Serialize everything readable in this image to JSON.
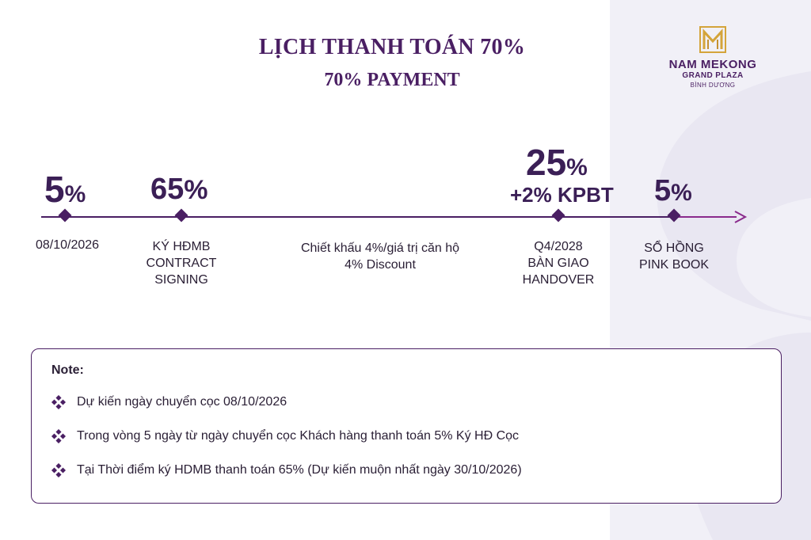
{
  "header": {
    "title": "LỊCH THANH TOÁN 70%",
    "subtitle": "70% PAYMENT"
  },
  "brand": {
    "name": "NAM MEKONG",
    "line2": "GRAND PLAZA",
    "line3": "BÌNH DƯƠNG",
    "logo_icon": "m-monogram-icon",
    "color": "#d4a43a"
  },
  "timeline": {
    "line_color": "#4a1f63",
    "arrow_color": "#8a2a8c",
    "milestones": [
      {
        "percent_num": "5",
        "percent_sym": "%",
        "extra": "",
        "label_lines": [
          "08/10/2026"
        ]
      },
      {
        "percent_num": "65",
        "percent_sym": "%",
        "extra": "",
        "label_lines": [
          "KÝ HĐMB",
          "CONTRACT",
          "SIGNING"
        ]
      },
      {
        "percent_num": "25",
        "percent_sym": "%",
        "extra": "+2% KPBT",
        "label_lines": [
          "Q4/2028",
          "BÀN GIAO",
          "HANDOVER"
        ]
      },
      {
        "percent_num": "5",
        "percent_sym": "%",
        "extra": "",
        "label_lines": [
          "SỔ HỒNG",
          "PINK BOOK"
        ]
      }
    ],
    "discount_lines": [
      "Chiết khấu 4%/giá trị căn hộ",
      "4% Discount"
    ]
  },
  "note": {
    "heading": "Note:",
    "bullet_icon": "four-diamond-bullet-icon",
    "items": [
      "Dự kiến ngày chuyển cọc 08/10/2026",
      "Trong vòng 5 ngày từ ngày chuyển cọc Khách hàng thanh toán 5% Ký HĐ Cọc",
      "Tại Thời điểm ký HDMB thanh toán 65% (Dự kiến muộn nhất ngày 30/10/2026)"
    ]
  }
}
